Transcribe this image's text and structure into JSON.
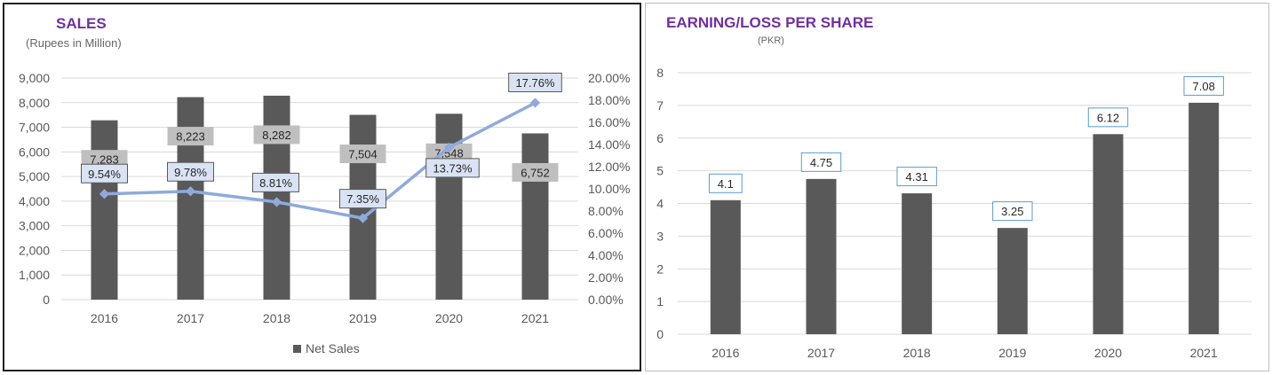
{
  "colors": {
    "title": "#7030a0",
    "bar": "#595959",
    "line": "#8faadc",
    "grid": "#d9d9d9",
    "axis_text": "#595959",
    "label_box_fill": "#dae3f3",
    "label_box_stroke": "#5b9bd5",
    "value_box_fill": "#bfbfbf"
  },
  "chart_data": [
    {
      "type": "bar",
      "title": "SALES",
      "subtitle": "(Rupees in Million)",
      "categories": [
        "2016",
        "2017",
        "2018",
        "2019",
        "2020",
        "2021"
      ],
      "series": [
        {
          "name": "Net Sales",
          "type": "bar",
          "axis": "left",
          "values": [
            7283,
            8223,
            8282,
            7504,
            7548,
            6752
          ],
          "labels": [
            "7,283",
            "8,223",
            "8,282",
            "7,504",
            "7,548",
            "6,752"
          ]
        },
        {
          "type": "line",
          "axis": "right",
          "values": [
            9.54,
            9.78,
            8.81,
            7.35,
            13.73,
            17.76
          ],
          "labels": [
            "9.54%",
            "9.78%",
            "8.81%",
            "7.35%",
            "13.73%",
            "17.76%"
          ]
        }
      ],
      "ylim": [
        0,
        9000
      ],
      "yticks": [
        "0",
        "1,000",
        "2,000",
        "3,000",
        "4,000",
        "5,000",
        "6,000",
        "7,000",
        "8,000",
        "9,000"
      ],
      "y2lim": [
        0,
        20
      ],
      "y2ticks": [
        "0.00%",
        "2.00%",
        "4.00%",
        "6.00%",
        "8.00%",
        "10.00%",
        "12.00%",
        "14.00%",
        "16.00%",
        "18.00%",
        "20.00%"
      ],
      "grid": true,
      "legend_position": "bottom",
      "legend": [
        "Net Sales"
      ]
    },
    {
      "type": "bar",
      "title": "EARNING/LOSS PER SHARE",
      "subtitle": "(PKR)",
      "categories": [
        "2016",
        "2017",
        "2018",
        "2019",
        "2020",
        "2021"
      ],
      "values": [
        4.1,
        4.75,
        4.31,
        3.25,
        6.12,
        7.08
      ],
      "labels": [
        "4.1",
        "4.75",
        "4.31",
        "3.25",
        "6.12",
        "7.08"
      ],
      "ylim": [
        0,
        8
      ],
      "yticks": [
        "0",
        "1",
        "2",
        "3",
        "4",
        "5",
        "6",
        "7",
        "8"
      ],
      "grid": true
    }
  ]
}
